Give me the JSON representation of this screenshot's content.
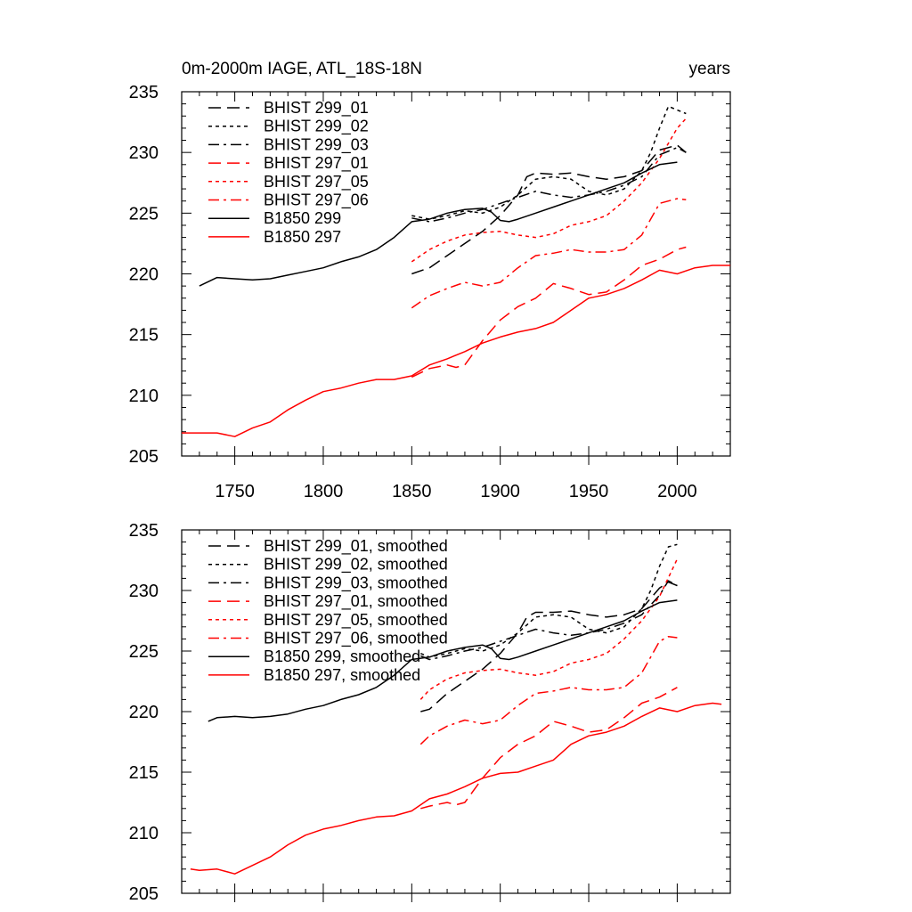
{
  "chart_data": [
    {
      "type": "line",
      "title_left": "0m-2000m IAGE, ATL_18S-18N",
      "title_right": "years",
      "xlim": [
        1720,
        2030
      ],
      "ylim": [
        205,
        235
      ],
      "x_ticks": [
        1750,
        1800,
        1850,
        1900,
        1950,
        2000
      ],
      "x_tick_labels": [
        "1750",
        "1800",
        "1850",
        "1900",
        "1950",
        "2000"
      ],
      "y_ticks": [
        205,
        210,
        215,
        220,
        225,
        230,
        235
      ],
      "y_tick_labels": [
        "205",
        "210",
        "215",
        "220",
        "225",
        "230",
        "235"
      ],
      "grid": false,
      "legend_position": "top-left",
      "series": [
        {
          "name": "BHIST 299_01",
          "color": "#000000",
          "dash": "dash",
          "x": [
            1850,
            1860,
            1870,
            1880,
            1890,
            1900,
            1910,
            1915,
            1920,
            1930,
            1940,
            1950,
            1960,
            1970,
            1980,
            1990,
            2000,
            2005
          ],
          "y": [
            220.0,
            220.5,
            221.5,
            222.5,
            223.5,
            224.8,
            226.5,
            228.0,
            228.3,
            228.2,
            228.3,
            228.0,
            227.8,
            228.0,
            228.5,
            230.2,
            230.6,
            230.0
          ]
        },
        {
          "name": "BHIST 299_02",
          "color": "#000000",
          "dash": "dot",
          "x": [
            1850,
            1860,
            1870,
            1880,
            1890,
            1900,
            1910,
            1920,
            1930,
            1940,
            1950,
            1960,
            1970,
            1980,
            1985,
            1990,
            1995,
            2000,
            2005
          ],
          "y": [
            224.8,
            224.5,
            224.8,
            225.2,
            225.0,
            225.5,
            226.5,
            227.8,
            228.0,
            227.8,
            226.8,
            226.5,
            227.0,
            228.5,
            230.0,
            232.0,
            233.8,
            233.5,
            233.2
          ]
        },
        {
          "name": "BHIST 299_03",
          "color": "#000000",
          "dash": "dashdot",
          "x": [
            1850,
            1860,
            1870,
            1880,
            1890,
            1900,
            1910,
            1920,
            1930,
            1940,
            1950,
            1960,
            1970,
            1980,
            1990,
            2000,
            2005
          ],
          "y": [
            224.6,
            224.3,
            224.6,
            225.0,
            225.3,
            225.8,
            226.3,
            226.8,
            226.5,
            226.3,
            226.5,
            226.8,
            227.3,
            228.0,
            229.8,
            230.4,
            230.0
          ]
        },
        {
          "name": "BHIST 297_01",
          "color": "#ff0000",
          "dash": "dash",
          "x": [
            1850,
            1860,
            1870,
            1875,
            1880,
            1890,
            1900,
            1910,
            1920,
            1930,
            1940,
            1950,
            1960,
            1970,
            1980,
            1990,
            2000,
            2005
          ],
          "y": [
            211.5,
            212.2,
            212.5,
            212.3,
            212.5,
            214.5,
            216.2,
            217.3,
            218.0,
            219.2,
            218.8,
            218.3,
            218.5,
            219.5,
            220.7,
            221.2,
            222.0,
            222.2
          ]
        },
        {
          "name": "BHIST 297_05",
          "color": "#ff0000",
          "dash": "dot",
          "x": [
            1850,
            1860,
            1870,
            1880,
            1890,
            1900,
            1910,
            1920,
            1930,
            1940,
            1950,
            1960,
            1970,
            1980,
            1990,
            2000,
            2005
          ],
          "y": [
            221.0,
            222.0,
            222.7,
            223.2,
            223.4,
            223.5,
            223.2,
            223.0,
            223.3,
            224.0,
            224.3,
            224.8,
            226.0,
            227.5,
            229.5,
            232.0,
            232.8
          ]
        },
        {
          "name": "BHIST 297_06",
          "color": "#ff0000",
          "dash": "dashdot",
          "x": [
            1850,
            1860,
            1870,
            1880,
            1890,
            1900,
            1910,
            1920,
            1930,
            1940,
            1950,
            1960,
            1970,
            1980,
            1990,
            2000,
            2005
          ],
          "y": [
            217.2,
            218.2,
            218.8,
            219.3,
            219.0,
            219.3,
            220.5,
            221.5,
            221.7,
            222.0,
            221.8,
            221.8,
            222.0,
            223.2,
            225.8,
            226.2,
            226.1
          ]
        },
        {
          "name": "B1850 299",
          "color": "#000000",
          "dash": "solid",
          "x": [
            1730,
            1740,
            1750,
            1760,
            1770,
            1780,
            1790,
            1800,
            1810,
            1820,
            1830,
            1840,
            1850,
            1860,
            1870,
            1880,
            1890,
            1895,
            1900,
            1905,
            1910,
            1920,
            1930,
            1940,
            1950,
            1960,
            1970,
            1980,
            1990,
            2000
          ],
          "y": [
            219.0,
            219.7,
            219.6,
            219.5,
            219.6,
            219.9,
            220.2,
            220.5,
            221.0,
            221.4,
            222.0,
            223.0,
            224.3,
            224.5,
            225.0,
            225.3,
            225.4,
            225.1,
            224.4,
            224.3,
            224.5,
            225.0,
            225.5,
            226.0,
            226.5,
            227.0,
            227.5,
            228.3,
            229.0,
            229.2
          ]
        },
        {
          "name": "B1850 297",
          "color": "#ff0000",
          "dash": "solid",
          "x": [
            1720,
            1730,
            1740,
            1750,
            1760,
            1770,
            1780,
            1790,
            1800,
            1810,
            1820,
            1830,
            1840,
            1850,
            1860,
            1870,
            1880,
            1890,
            1900,
            1910,
            1920,
            1930,
            1940,
            1950,
            1960,
            1970,
            1980,
            1990,
            2000,
            2010,
            2020,
            2030
          ],
          "y": [
            206.9,
            206.9,
            206.9,
            206.6,
            207.3,
            207.8,
            208.8,
            209.6,
            210.3,
            210.6,
            211.0,
            211.3,
            211.3,
            211.6,
            212.5,
            213.0,
            213.6,
            214.3,
            214.8,
            215.2,
            215.5,
            216.0,
            217.0,
            218.0,
            218.3,
            218.8,
            219.5,
            220.3,
            220.0,
            220.5,
            220.7,
            220.7
          ]
        }
      ]
    },
    {
      "type": "line",
      "title_left": "",
      "title_right": "",
      "xlim": [
        1720,
        2030
      ],
      "ylim": [
        205,
        235
      ],
      "x_ticks": [
        1750,
        1800,
        1850,
        1900,
        1950,
        2000
      ],
      "x_tick_labels": [],
      "y_ticks": [
        205,
        210,
        215,
        220,
        225,
        230,
        235
      ],
      "y_tick_labels": [
        "205",
        "210",
        "215",
        "220",
        "225",
        "230",
        "235"
      ],
      "grid": false,
      "legend_position": "top-left",
      "series": [
        {
          "name": "BHIST 299_01, smoothed",
          "color": "#000000",
          "dash": "dash",
          "x": [
            1855,
            1860,
            1870,
            1880,
            1890,
            1900,
            1910,
            1915,
            1920,
            1930,
            1940,
            1950,
            1960,
            1970,
            1980,
            1990,
            1995,
            2000
          ],
          "y": [
            220.0,
            220.2,
            221.5,
            222.5,
            223.5,
            224.8,
            226.5,
            227.8,
            228.2,
            228.2,
            228.3,
            228.0,
            227.8,
            228.0,
            228.5,
            230.2,
            230.7,
            230.4
          ]
        },
        {
          "name": "BHIST 299_02, smoothed",
          "color": "#000000",
          "dash": "dot",
          "x": [
            1855,
            1860,
            1870,
            1880,
            1890,
            1900,
            1910,
            1920,
            1930,
            1940,
            1950,
            1960,
            1970,
            1980,
            1985,
            1990,
            1995,
            2000
          ],
          "y": [
            224.8,
            224.5,
            224.8,
            225.2,
            225.0,
            225.5,
            226.5,
            227.8,
            228.0,
            227.8,
            226.8,
            226.5,
            227.0,
            228.5,
            230.0,
            232.0,
            233.6,
            233.8
          ]
        },
        {
          "name": "BHIST 299_03, smoothed",
          "color": "#000000",
          "dash": "dashdot",
          "x": [
            1855,
            1860,
            1870,
            1880,
            1890,
            1900,
            1910,
            1920,
            1930,
            1940,
            1950,
            1960,
            1970,
            1980,
            1990,
            1995,
            2000
          ],
          "y": [
            224.6,
            224.3,
            224.6,
            225.0,
            225.3,
            225.8,
            226.3,
            226.8,
            226.5,
            226.3,
            226.5,
            226.8,
            227.3,
            228.0,
            229.6,
            230.8,
            230.4
          ]
        },
        {
          "name": "BHIST 297_01, smoothed",
          "color": "#ff0000",
          "dash": "dash",
          "x": [
            1855,
            1860,
            1870,
            1875,
            1880,
            1890,
            1900,
            1910,
            1920,
            1930,
            1940,
            1950,
            1960,
            1970,
            1980,
            1990,
            2000
          ],
          "y": [
            212.0,
            212.2,
            212.5,
            212.3,
            212.5,
            214.5,
            216.2,
            217.3,
            218.0,
            219.2,
            218.8,
            218.3,
            218.5,
            219.5,
            220.7,
            221.2,
            222.0
          ]
        },
        {
          "name": "BHIST 297_05, smoothed",
          "color": "#ff0000",
          "dash": "dot",
          "x": [
            1855,
            1860,
            1870,
            1880,
            1890,
            1900,
            1910,
            1920,
            1930,
            1940,
            1950,
            1960,
            1970,
            1980,
            1990,
            2000
          ],
          "y": [
            221.0,
            221.8,
            222.7,
            223.2,
            223.4,
            223.5,
            223.2,
            223.0,
            223.3,
            224.0,
            224.3,
            224.8,
            226.0,
            227.5,
            229.5,
            232.6
          ]
        },
        {
          "name": "BHIST 297_06, smoothed",
          "color": "#ff0000",
          "dash": "dashdot",
          "x": [
            1855,
            1860,
            1870,
            1880,
            1890,
            1900,
            1910,
            1920,
            1930,
            1940,
            1950,
            1960,
            1970,
            1980,
            1990,
            1995,
            2000
          ],
          "y": [
            217.3,
            218.0,
            218.8,
            219.3,
            219.0,
            219.3,
            220.5,
            221.5,
            221.7,
            222.0,
            221.8,
            221.8,
            222.0,
            223.2,
            225.8,
            226.2,
            226.1
          ]
        },
        {
          "name": "B1850 299, smoothed",
          "color": "#000000",
          "dash": "solid",
          "x": [
            1735,
            1740,
            1750,
            1760,
            1770,
            1780,
            1790,
            1800,
            1810,
            1820,
            1830,
            1840,
            1850,
            1860,
            1870,
            1880,
            1890,
            1895,
            1900,
            1905,
            1910,
            1920,
            1930,
            1940,
            1950,
            1960,
            1970,
            1980,
            1990,
            2000
          ],
          "y": [
            219.2,
            219.5,
            219.6,
            219.5,
            219.6,
            219.8,
            220.2,
            220.5,
            221.0,
            221.4,
            222.0,
            223.0,
            224.3,
            224.5,
            225.0,
            225.3,
            225.5,
            225.2,
            224.4,
            224.3,
            224.5,
            225.0,
            225.5,
            226.0,
            226.5,
            227.0,
            227.5,
            228.3,
            229.0,
            229.2
          ]
        },
        {
          "name": "B1850 297, smoothed",
          "color": "#ff0000",
          "dash": "solid",
          "x": [
            1725,
            1730,
            1740,
            1745,
            1750,
            1760,
            1770,
            1780,
            1790,
            1800,
            1810,
            1820,
            1830,
            1840,
            1850,
            1860,
            1870,
            1880,
            1890,
            1900,
            1910,
            1920,
            1930,
            1940,
            1950,
            1960,
            1970,
            1980,
            1990,
            2000,
            2010,
            2020,
            2025
          ],
          "y": [
            207.0,
            206.9,
            207.0,
            206.8,
            206.6,
            207.3,
            208.0,
            209.0,
            209.8,
            210.3,
            210.6,
            211.0,
            211.3,
            211.4,
            211.8,
            212.8,
            213.2,
            213.8,
            214.5,
            214.9,
            215.0,
            215.5,
            216.0,
            217.3,
            218.0,
            218.3,
            218.8,
            219.6,
            220.3,
            220.0,
            220.5,
            220.7,
            220.6
          ]
        }
      ]
    }
  ]
}
